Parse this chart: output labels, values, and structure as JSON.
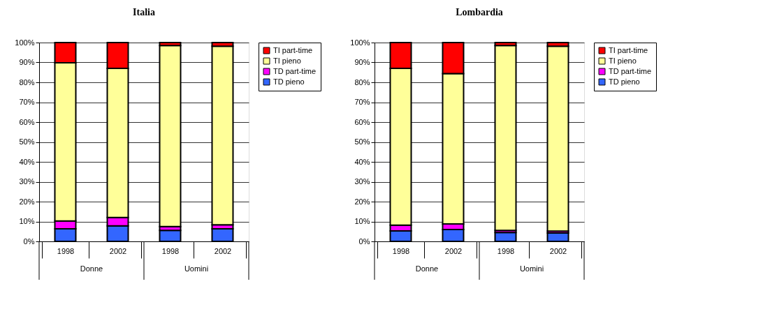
{
  "chart_data": [
    {
      "type": "bar",
      "title": "Italia",
      "stacked": true,
      "categories": [
        "1998",
        "2002",
        "1998",
        "2002"
      ],
      "annotations": [
        "Donne",
        "Uomini"
      ],
      "series": [
        {
          "name": "TD pieno",
          "color": "#3366ff",
          "values": [
            6.3,
            7.8,
            5.5,
            6.3
          ]
        },
        {
          "name": "TD part-time",
          "color": "#ff00ff",
          "values": [
            4.0,
            4.2,
            2.0,
            2.0
          ]
        },
        {
          "name": "TI pieno",
          "color": "#ffff99",
          "values": [
            79.5,
            75.0,
            91.0,
            89.9
          ]
        },
        {
          "name": "TI part-time",
          "color": "#ff0000",
          "values": [
            10.2,
            13.0,
            1.5,
            1.8
          ]
        }
      ],
      "ylim": [
        0,
        100
      ],
      "yticks": [
        {
          "value": 0,
          "label": "0%"
        },
        {
          "value": 10,
          "label": "10%"
        },
        {
          "value": 20,
          "label": "20%"
        },
        {
          "value": 30,
          "label": "30%"
        },
        {
          "value": 40,
          "label": "40%"
        },
        {
          "value": 50,
          "label": "50%"
        },
        {
          "value": 60,
          "label": "60%"
        },
        {
          "value": 70,
          "label": "70%"
        },
        {
          "value": 80,
          "label": "80%"
        },
        {
          "value": 90,
          "label": "90%"
        },
        {
          "value": 100,
          "label": "100%"
        }
      ],
      "grid": "y",
      "legend": "right"
    },
    {
      "type": "bar",
      "title": "Lombardia",
      "stacked": true,
      "categories": [
        "1998",
        "2002",
        "1998",
        "2002"
      ],
      "annotations": [
        "Donne",
        "Uomini"
      ],
      "series": [
        {
          "name": "TD pieno",
          "color": "#3366ff",
          "values": [
            5.3,
            6.0,
            4.5,
            4.2
          ]
        },
        {
          "name": "TD part-time",
          "color": "#ff00ff",
          "values": [
            2.9,
            2.8,
            1.0,
            1.0
          ]
        },
        {
          "name": "TI pieno",
          "color": "#ffff99",
          "values": [
            78.8,
            75.6,
            93.0,
            93.0
          ]
        },
        {
          "name": "TI part-time",
          "color": "#ff0000",
          "values": [
            13.0,
            15.6,
            1.5,
            1.8
          ]
        }
      ],
      "ylim": [
        0,
        100
      ],
      "yticks": [
        {
          "value": 0,
          "label": "0%"
        },
        {
          "value": 10,
          "label": "10%"
        },
        {
          "value": 20,
          "label": "20%"
        },
        {
          "value": 30,
          "label": "30%"
        },
        {
          "value": 40,
          "label": "40%"
        },
        {
          "value": 50,
          "label": "50%"
        },
        {
          "value": 60,
          "label": "60%"
        },
        {
          "value": 70,
          "label": "70%"
        },
        {
          "value": 80,
          "label": "80%"
        },
        {
          "value": 90,
          "label": "90%"
        },
        {
          "value": 100,
          "label": "100%"
        }
      ],
      "grid": "y",
      "legend": "right"
    }
  ]
}
